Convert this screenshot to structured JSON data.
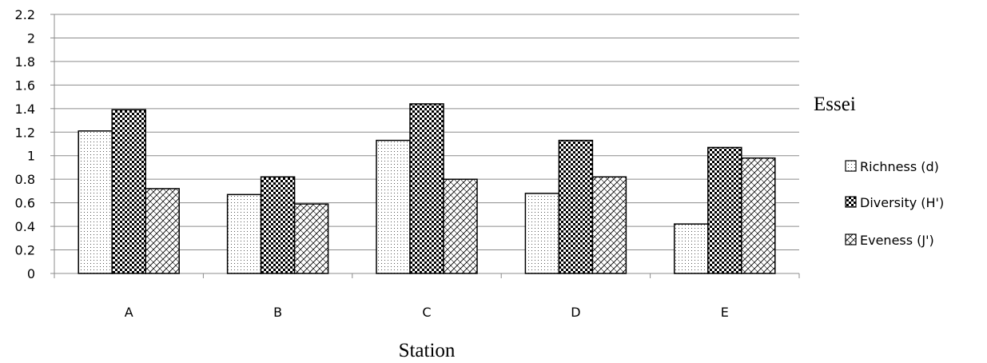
{
  "chart_data": {
    "type": "bar",
    "categories": [
      "A",
      "B",
      "C",
      "D",
      "E"
    ],
    "series": [
      {
        "name": "Richness (d)",
        "values": [
          1.21,
          0.67,
          1.13,
          0.68,
          0.42
        ],
        "pattern": "dots"
      },
      {
        "name": "Diversity (H')",
        "values": [
          1.39,
          0.82,
          1.44,
          1.13,
          1.07
        ],
        "pattern": "checker"
      },
      {
        "name": "Eveness (J')",
        "values": [
          0.72,
          0.59,
          0.8,
          0.82,
          0.98
        ],
        "pattern": "diagonal-cross"
      }
    ],
    "yticks": [
      "0",
      "0.2",
      "0.4",
      "0.6",
      "0.8",
      "1",
      "1.2",
      "1.4",
      "1.6",
      "1.8",
      "2",
      "2.2"
    ],
    "ylim": [
      0,
      2.2
    ],
    "xlabel": "Station",
    "annotation": "Essei",
    "grid": true,
    "legend_position": "right"
  }
}
